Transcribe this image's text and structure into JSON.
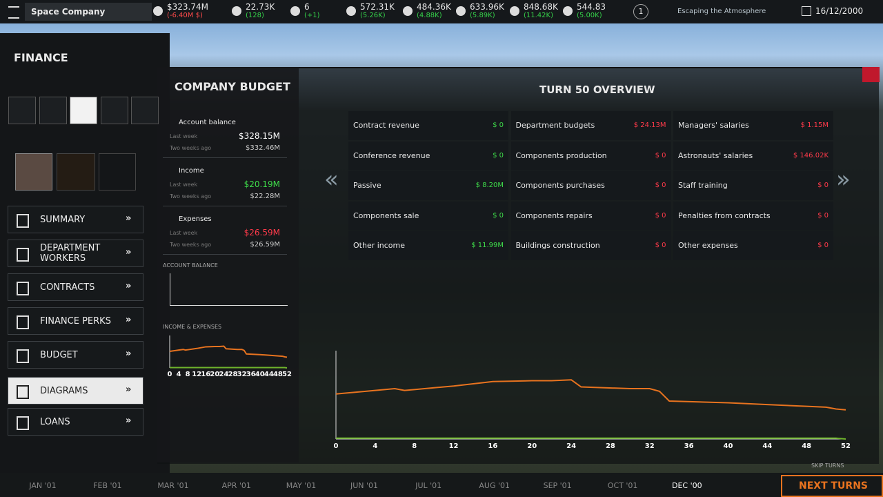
{
  "topbar": {
    "company": "Space Company",
    "stats": [
      {
        "value": "$323.74M",
        "delta": "(-6.40M $)"
      },
      {
        "value": "22.73K",
        "delta": "(128)"
      },
      {
        "value": "6",
        "delta": "(+1)"
      },
      {
        "value": "572.31K",
        "delta": "(5.26K)"
      },
      {
        "value": "484.36K",
        "delta": "(4.88K)"
      },
      {
        "value": "633.96K",
        "delta": "(5.89K)"
      },
      {
        "value": "848.68K",
        "delta": "(11.42K)"
      },
      {
        "value": "544.83",
        "delta": "(5.00K)"
      }
    ],
    "level": "1",
    "mission": "Escaping the Atmosphere",
    "date": "16/12/2000"
  },
  "sidebar": {
    "title": "FINANCE",
    "menu": [
      "SUMMARY",
      "DEPARTMENT WORKERS",
      "CONTRACTS",
      "FINANCE PERKS",
      "BUDGET",
      "DIAGRAMS",
      "LOANS"
    ]
  },
  "budget": {
    "title": "COMPANY BUDGET",
    "sections": [
      {
        "label": "Account balance",
        "last_week_label": "Last week",
        "last_week": "$328.15M",
        "two_weeks_label": "Two weeks ago",
        "two_weeks": "$332.46M"
      },
      {
        "label": "Income",
        "last_week_label": "Last week",
        "last_week": "$20.19M",
        "two_weeks_label": "Two weeks ago",
        "two_weeks": "$22.28M"
      },
      {
        "label": "Expenses",
        "last_week_label": "Last week",
        "last_week": "$26.59M",
        "two_weeks_label": "Two weeks ago",
        "two_weeks": "$26.59M"
      }
    ],
    "account_chart_title": "ACCOUNT BALANCE"
  },
  "overview": {
    "title": "TURN 50 OVERVIEW",
    "columns": [
      [
        {
          "label": "Contract revenue",
          "value": "$ 0"
        },
        {
          "label": "Conference revenue",
          "value": "$ 0"
        },
        {
          "label": "Passive",
          "value": "$ 8.20M"
        },
        {
          "label": "Components sale",
          "value": "$ 0"
        },
        {
          "label": "Other income",
          "value": "$ 11.99M"
        }
      ],
      [
        {
          "label": "Department budgets",
          "value": "$ 24.13M"
        },
        {
          "label": "Components production",
          "value": "$ 0"
        },
        {
          "label": "Components purchases",
          "value": "$ 0"
        },
        {
          "label": "Components repairs",
          "value": "$ 0"
        },
        {
          "label": "Buildings construction",
          "value": "$ 0"
        }
      ],
      [
        {
          "label": "Managers' salaries",
          "value": "$ 1.15M"
        },
        {
          "label": "Astronauts' salaries",
          "value": "$ 146.02K"
        },
        {
          "label": "Staff training",
          "value": "$ 0"
        },
        {
          "label": "Penalties from contracts",
          "value": "$ 0"
        },
        {
          "label": "Other expenses",
          "value": "$ 0"
        }
      ]
    ]
  },
  "chart_data": [
    {
      "type": "line",
      "title": "INCOME & EXPENSES",
      "x": [
        0,
        4,
        6,
        7,
        8,
        12,
        16,
        20,
        22,
        24,
        25,
        30,
        32,
        33,
        34,
        40,
        44,
        48,
        50,
        51,
        52
      ],
      "series": [
        {
          "color": "#e8731f",
          "values": [
            51,
            55,
            57,
            55,
            56,
            60,
            65,
            66,
            66,
            67,
            59,
            57,
            57,
            54,
            43,
            41,
            39,
            37,
            36,
            34,
            33
          ]
        },
        {
          "color": "#6fb52c",
          "values": [
            1,
            1,
            1,
            1,
            1,
            1,
            1,
            1,
            1,
            1,
            1,
            1,
            1,
            1,
            1,
            1,
            1,
            1,
            1,
            1,
            0
          ]
        }
      ],
      "xlim": [
        0,
        52
      ],
      "ylim": [
        0,
        100
      ],
      "xticks": [
        0,
        4,
        8,
        12,
        16,
        20,
        24,
        28,
        32,
        36,
        40,
        44,
        48,
        52
      ]
    },
    {
      "type": "line",
      "x": [
        0,
        4,
        6,
        7,
        8,
        12,
        16,
        20,
        22,
        24,
        25,
        30,
        32,
        33,
        34,
        40,
        44,
        48,
        50,
        51,
        52
      ],
      "series": [
        {
          "color": "#e8731f",
          "values": [
            51,
            55,
            57,
            55,
            56,
            60,
            65,
            66,
            66,
            67,
            59,
            57,
            57,
            54,
            43,
            41,
            39,
            37,
            36,
            34,
            33
          ]
        },
        {
          "color": "#6fb52c",
          "values": [
            1,
            1,
            1,
            1,
            1,
            1,
            1,
            1,
            1,
            1,
            1,
            1,
            1,
            1,
            1,
            1,
            1,
            1,
            1,
            1,
            0
          ]
        }
      ],
      "xlim": [
        0,
        52
      ],
      "ylim": [
        0,
        100
      ],
      "xticks": [
        0,
        4,
        8,
        12,
        16,
        20,
        24,
        28,
        32,
        36,
        40,
        44,
        48,
        52
      ]
    }
  ],
  "timeline": {
    "months": [
      "JAN '01",
      "FEB '01",
      "MAR '01",
      "APR '01",
      "MAY '01",
      "JUN '01",
      "JUL '01",
      "AUG '01",
      "SEP '01",
      "OCT '01",
      "DEC '00"
    ],
    "skip": "SKIP TURNS",
    "next": "NEXT TURNS"
  }
}
